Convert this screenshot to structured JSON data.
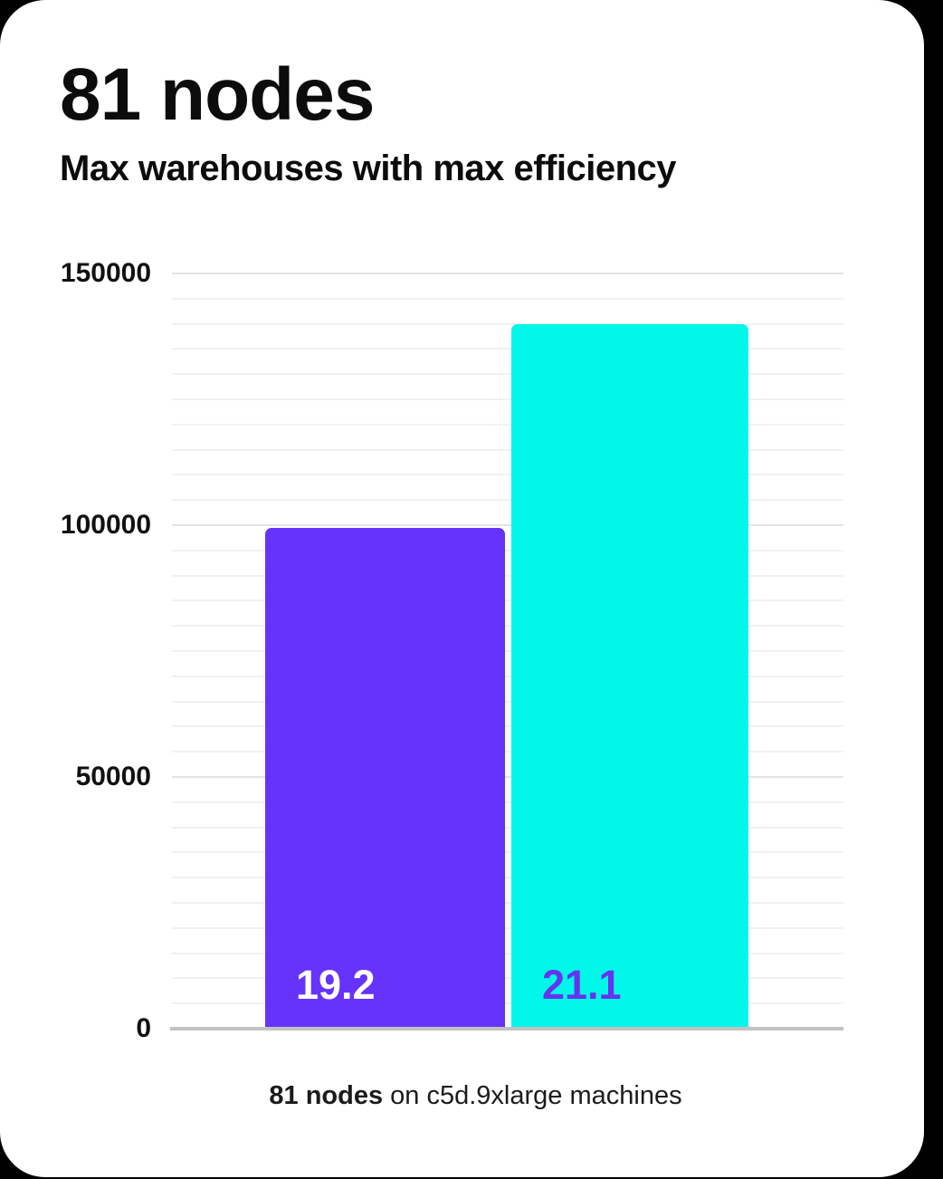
{
  "page": {
    "outside_background": "#000000",
    "card_background": "#FFFFFF"
  },
  "header": {
    "title": "81 nodes",
    "subtitle": "Max warehouses with max efficiency"
  },
  "chart_data": {
    "type": "bar",
    "title": "81 nodes",
    "subtitle": "Max warehouses with max efficiency",
    "categories": [
      "19.2",
      "21.1"
    ],
    "values": [
      99500,
      140000
    ],
    "bar_labels": [
      "19.2",
      "21.1"
    ],
    "bar_colors": [
      "#6633FB",
      "#00F7EA"
    ],
    "bar_label_colors": [
      "#FFFFFF",
      "#6633EE"
    ],
    "xlabel": "",
    "ylabel": "",
    "ylim": [
      0,
      150000
    ],
    "yticks": [
      0,
      50000,
      100000,
      150000
    ],
    "minor_gridline_step": 5000,
    "major_gridline_step": 50000,
    "grid": true,
    "legend": false,
    "caption_bold": "81 nodes",
    "caption_rest": " on c5d.9xlarge machines"
  },
  "colors": {
    "axis_line": "#C2C2C2",
    "grid_minor": "#F1F1F1",
    "grid_major": "#E4E4E4",
    "tick_text": "#111111",
    "title_text": "#0C0C0C",
    "caption_text": "#1B1B1B"
  }
}
